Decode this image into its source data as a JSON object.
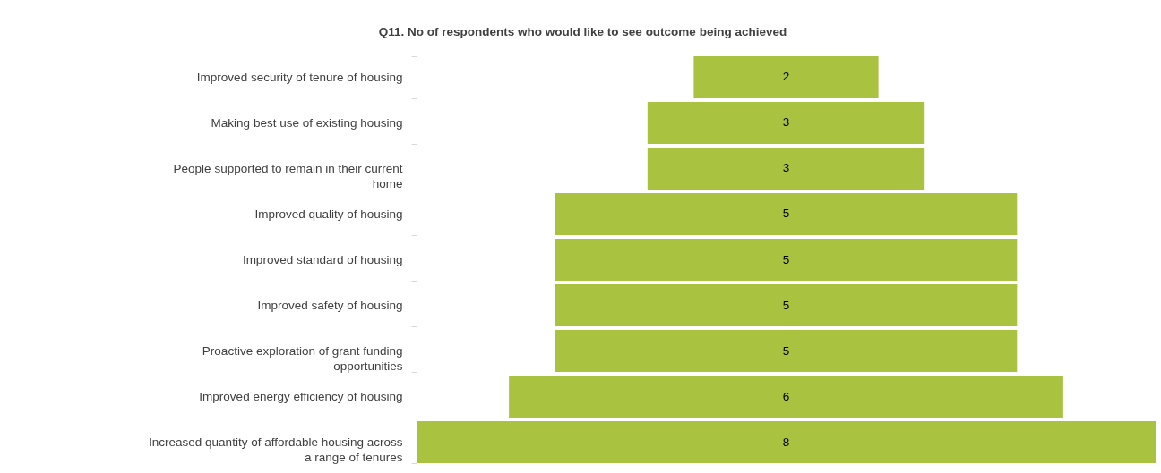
{
  "chart_data": {
    "type": "other",
    "title": "Q11. No of respondents who would like to see outcome being achieved",
    "categories": [
      "Improved security of tenure of housing",
      "Making best use of existing housing",
      "People supported to remain in their current home",
      "Improved quality of housing",
      "Improved standard of housing",
      "Improved safety of housing",
      "Proactive exploration of grant funding opportunities",
      "Improved energy efficiency of housing",
      "Increased quantity of affordable housing across a range of tenures"
    ],
    "values": [
      2,
      3,
      3,
      5,
      5,
      5,
      5,
      6,
      8
    ],
    "color": "#a9c23f",
    "data_labels": true
  }
}
